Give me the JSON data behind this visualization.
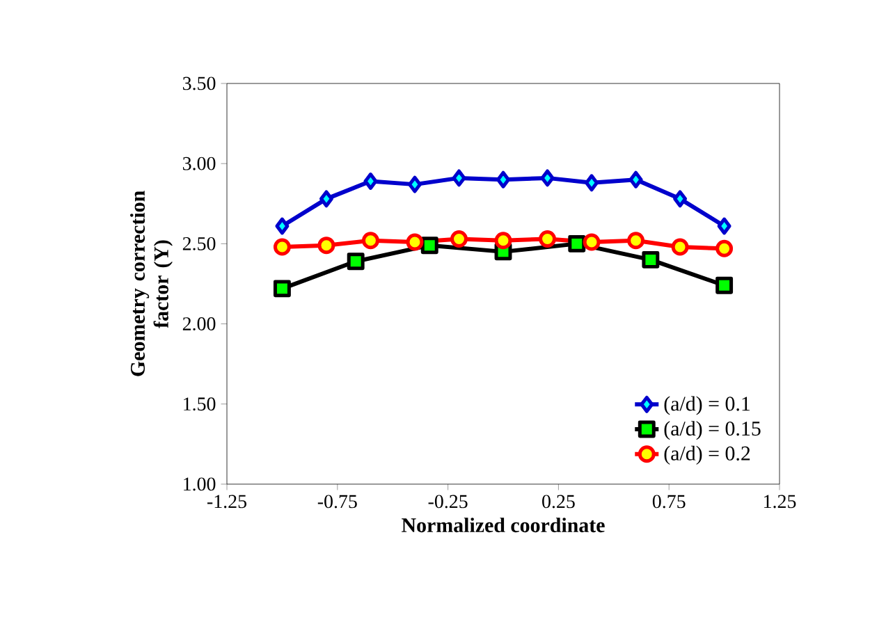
{
  "chart_data": {
    "type": "line",
    "xlabel": "Normalized coordinate",
    "ylabel": "Geometry correction factor (Y)",
    "xlim": [
      -1.25,
      1.25
    ],
    "xticks": [
      -1.25,
      -0.75,
      -0.25,
      0.25,
      0.75,
      1.25
    ],
    "ylim": [
      1.0,
      3.5
    ],
    "yticks": [
      {
        "value": 1.0,
        "label": "1.00"
      },
      {
        "value": 1.5,
        "label": "1.50"
      },
      {
        "value": 2.0,
        "label": "2.00"
      },
      {
        "value": 2.5,
        "label": "2.50"
      },
      {
        "value": 3.0,
        "label": "3.00"
      },
      {
        "value": 3.5,
        "label": "3.50"
      }
    ],
    "grid": false,
    "legend": "bottom right",
    "line_style": "solid",
    "series": [
      {
        "name": "(a/d) = 0.1",
        "color": "#0000cc",
        "marker": "diamond",
        "x": [
          -1,
          -0.8,
          -0.6,
          -0.4,
          -0.2,
          0,
          0.2,
          0.4,
          0.6,
          0.8,
          1
        ],
        "values": [
          2.61,
          2.78,
          2.89,
          2.87,
          2.91,
          2.9,
          2.91,
          2.88,
          2.9,
          2.78,
          2.61
        ]
      },
      {
        "name": "(a/d) = 0.15",
        "color": "#000000",
        "marker": "square",
        "x": [
          -1,
          -0.667,
          -0.333,
          0,
          0.333,
          0.667,
          1
        ],
        "values": [
          2.22,
          2.39,
          2.49,
          2.45,
          2.5,
          2.4,
          2.24
        ]
      },
      {
        "name": "(a/d) = 0.2",
        "color": "#ff0000",
        "marker": "circle",
        "x": [
          -1,
          -0.8,
          -0.6,
          -0.4,
          -0.2,
          0,
          0.2,
          0.4,
          0.6,
          0.8,
          1
        ],
        "values": [
          2.48,
          2.49,
          2.52,
          2.51,
          2.53,
          2.52,
          2.53,
          2.51,
          2.52,
          2.48,
          2.47
        ]
      }
    ]
  }
}
